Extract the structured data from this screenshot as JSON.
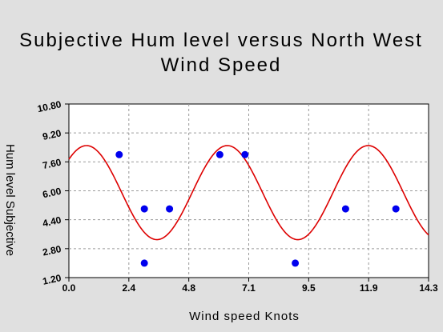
{
  "chart_data": {
    "type": "scatter",
    "title_lines": [
      "Subjective Hum level versus North West",
      "Wind  Speed"
    ],
    "xlabel": "Wind speed Knots",
    "ylabel": "Hum level  Subjective",
    "xlim": [
      0.0,
      14.3
    ],
    "ylim": [
      1.2,
      10.8
    ],
    "x_ticks": [
      "0.0",
      "2.4",
      "4.8",
      "7.1",
      "9.5",
      "11.9",
      "14.3"
    ],
    "y_ticks": [
      "1.20",
      "2.80",
      "4.40",
      "6.00",
      "7.60",
      "9.20",
      "10.80"
    ],
    "grid": true,
    "series": [
      {
        "type": "scatter",
        "color": "#0000ee",
        "points": [
          {
            "x": 2.0,
            "y": 8.0
          },
          {
            "x": 3.0,
            "y": 5.0
          },
          {
            "x": 3.0,
            "y": 2.0
          },
          {
            "x": 4.0,
            "y": 5.0
          },
          {
            "x": 6.0,
            "y": 8.0
          },
          {
            "x": 7.0,
            "y": 8.0
          },
          {
            "x": 9.0,
            "y": 2.0
          },
          {
            "x": 11.0,
            "y": 5.0
          },
          {
            "x": 13.0,
            "y": 5.0
          }
        ]
      },
      {
        "type": "line",
        "color": "#dd0000",
        "fit": {
          "model": "sine",
          "mean": 5.9,
          "amplitude": 2.6,
          "period": 5.6,
          "peak_x": 0.7
        }
      }
    ]
  }
}
